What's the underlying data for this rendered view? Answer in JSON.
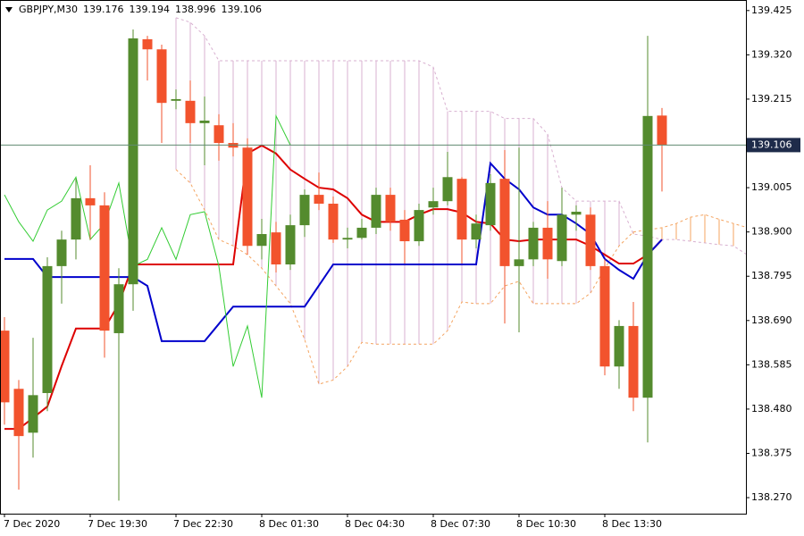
{
  "chart_data": {
    "type": "candlestick",
    "title": "GBPJPY,M30",
    "categories": [
      "7 Dec 2020",
      null,
      null,
      null,
      null,
      null,
      "7 Dec 19:30",
      null,
      null,
      null,
      null,
      null,
      "7 Dec 22:30",
      null,
      null,
      null,
      null,
      null,
      "8 Dec 01:30",
      null,
      null,
      null,
      null,
      null,
      "8 Dec 04:30",
      null,
      null,
      null,
      null,
      null,
      "8 Dec 07:30",
      null,
      null,
      null,
      null,
      null,
      "8 Dec 10:30",
      null,
      null,
      null,
      null,
      null,
      "8 Dec 13:30",
      null,
      null,
      null,
      null,
      null,
      null,
      null,
      null,
      null,
      null
    ],
    "open": [
      138.666,
      138.528,
      138.424,
      138.518,
      138.819,
      138.882,
      138.98,
      138.963,
      138.66,
      138.776,
      139.357,
      139.333,
      139.211,
      139.211,
      139.158,
      139.153,
      139.111,
      139.1,
      138.867,
      138.899,
      138.823,
      138.916,
      138.988,
      138.967,
      138.882,
      138.886,
      138.91,
      138.988,
      138.929,
      138.878,
      138.958,
      138.973,
      139.026,
      138.882,
      138.916,
      139.026,
      138.819,
      138.835,
      138.91,
      138.831,
      138.941,
      138.941,
      138.819,
      138.581,
      138.677,
      138.507,
      139.176,
      null,
      null,
      null,
      null,
      null,
      null
    ],
    "high": [
      138.698,
      138.549,
      138.649,
      138.84,
      138.903,
      139.026,
      139.058,
      138.994,
      138.814,
      139.38,
      139.365,
      139.344,
      139.238,
      139.259,
      139.221,
      139.179,
      139.158,
      139.122,
      138.931,
      138.924,
      138.941,
      139.001,
      139.041,
      138.984,
      138.91,
      138.931,
      139.005,
      139.005,
      138.952,
      138.967,
      139.005,
      139.09,
      139.03,
      138.941,
      139.037,
      139.094,
      139.1,
      138.924,
      138.973,
      139.005,
      138.963,
      138.958,
      138.835,
      138.691,
      138.734,
      139.365,
      139.194,
      null,
      null,
      null,
      null,
      null,
      null
    ],
    "low": [
      138.443,
      138.289,
      138.365,
      138.475,
      138.73,
      138.835,
      138.882,
      138.602,
      138.263,
      138.713,
      139.259,
      139.111,
      139.191,
      139.111,
      139.058,
      139.069,
      139.079,
      138.846,
      138.835,
      138.804,
      138.81,
      138.888,
      138.952,
      138.874,
      138.861,
      138.882,
      138.895,
      138.903,
      138.825,
      138.867,
      138.941,
      138.963,
      138.825,
      138.861,
      138.903,
      138.683,
      138.662,
      138.819,
      138.789,
      138.819,
      138.903,
      138.81,
      138.56,
      138.528,
      138.475,
      138.401,
      138.996,
      null,
      null,
      null,
      null,
      null,
      null
    ],
    "close": [
      138.496,
      138.416,
      138.513,
      138.819,
      138.882,
      138.98,
      138.963,
      138.666,
      138.776,
      139.359,
      139.333,
      139.206,
      139.215,
      139.158,
      139.164,
      139.111,
      139.1,
      138.867,
      138.895,
      138.823,
      138.916,
      138.988,
      138.967,
      138.882,
      138.886,
      138.91,
      138.988,
      138.924,
      138.878,
      138.952,
      138.973,
      139.03,
      138.882,
      138.92,
      139.016,
      138.819,
      138.835,
      138.91,
      138.835,
      138.941,
      138.948,
      138.819,
      138.581,
      138.677,
      138.507,
      139.175,
      139.106,
      null,
      null,
      null,
      null,
      null,
      null
    ],
    "up_color": "#548b2e",
    "down_color": "#f2532d",
    "price_line_color": "#5f8a70",
    "price_box_color": "#1e2b4a",
    "series": [
      {
        "color": "#dd0000",
        "values": [
          138.433,
          138.433,
          138.459,
          138.486,
          138.582,
          138.671,
          138.671,
          138.671,
          138.73,
          138.823,
          138.823,
          138.823,
          138.823,
          138.823,
          138.823,
          138.823,
          138.823,
          139.086,
          139.105,
          139.086,
          139.048,
          139.026,
          139.005,
          139.001,
          138.98,
          138.941,
          138.924,
          138.924,
          138.924,
          138.941,
          138.954,
          138.954,
          138.946,
          138.924,
          138.92,
          138.882,
          138.878,
          138.882,
          138.882,
          138.882,
          138.882,
          138.867,
          138.846,
          138.825,
          138.825,
          138.846,
          138.882,
          null,
          null,
          null,
          null,
          null,
          null
        ]
      },
      {
        "color": "#0000cc",
        "values": [
          138.836,
          138.836,
          138.836,
          138.793,
          138.793,
          138.793,
          138.793,
          138.793,
          138.793,
          138.793,
          138.772,
          138.641,
          138.641,
          138.641,
          138.641,
          138.682,
          138.723,
          138.723,
          138.723,
          138.723,
          138.723,
          138.723,
          138.773,
          138.823,
          138.823,
          138.823,
          138.823,
          138.823,
          138.823,
          138.823,
          138.823,
          138.823,
          138.823,
          138.823,
          139.063,
          139.026,
          139.001,
          138.958,
          138.941,
          138.941,
          138.92,
          138.895,
          138.836,
          138.81,
          138.789,
          138.846,
          138.882,
          null,
          null,
          null,
          null,
          null,
          null
        ]
      },
      {
        "color": "#33cc33",
        "values": [
          138.988,
          138.924,
          138.878,
          138.952,
          138.973,
          139.03,
          138.882,
          138.92,
          139.016,
          138.819,
          138.835,
          138.91,
          138.835,
          138.941,
          138.948,
          138.819,
          138.581,
          138.677,
          138.507,
          139.175,
          139.106,
          null,
          null,
          null,
          null,
          null,
          null,
          null,
          null,
          null,
          null,
          null,
          null,
          null,
          null,
          null,
          null,
          null,
          null,
          null,
          null,
          null,
          null,
          null,
          null,
          null,
          null,
          null,
          null,
          null,
          null,
          null,
          null
        ]
      },
      {
        "color": "#f4a460",
        "dashed": true,
        "values": [
          null,
          null,
          null,
          null,
          null,
          null,
          null,
          null,
          null,
          null,
          null,
          null,
          139.048,
          139.016,
          138.952,
          138.882,
          138.867,
          138.846,
          138.814,
          138.772,
          138.73,
          138.645,
          138.539,
          138.549,
          138.581,
          138.638,
          138.634,
          138.634,
          138.634,
          138.634,
          138.634,
          138.666,
          138.734,
          138.73,
          138.73,
          138.772,
          138.783,
          138.73,
          138.73,
          138.73,
          138.73,
          138.755,
          138.814,
          138.867,
          138.9,
          138.905,
          138.91,
          138.92,
          138.935,
          138.941,
          138.93,
          138.92,
          138.91
        ]
      },
      {
        "color": "#d8b0d0",
        "dashed": true,
        "values": [
          null,
          null,
          null,
          null,
          null,
          null,
          null,
          null,
          null,
          null,
          null,
          null,
          139.408,
          139.397,
          139.365,
          139.306,
          139.306,
          139.306,
          139.306,
          139.306,
          139.306,
          139.306,
          139.306,
          139.306,
          139.306,
          139.306,
          139.306,
          139.306,
          139.306,
          139.306,
          139.291,
          139.186,
          139.186,
          139.186,
          139.186,
          139.169,
          139.169,
          139.169,
          139.132,
          139.005,
          138.973,
          138.973,
          138.973,
          138.973,
          138.895,
          138.89,
          138.882,
          138.882,
          138.878,
          138.874,
          138.87,
          138.867,
          138.845
        ]
      }
    ],
    "cloud_hatch": true,
    "ylim": [
      138.232,
      139.45
    ],
    "yticks": [
      139.425,
      {
        "value": 139.32,
        "label": "139.320"
      },
      139.215,
      139.005,
      {
        "value": 138.9,
        "label": "138.900"
      },
      138.795,
      {
        "value": 138.69,
        "label": "138.690"
      },
      138.585,
      {
        "value": 138.48,
        "label": "138.480"
      },
      138.375,
      {
        "value": 138.27,
        "label": "138.270"
      }
    ]
  }
}
